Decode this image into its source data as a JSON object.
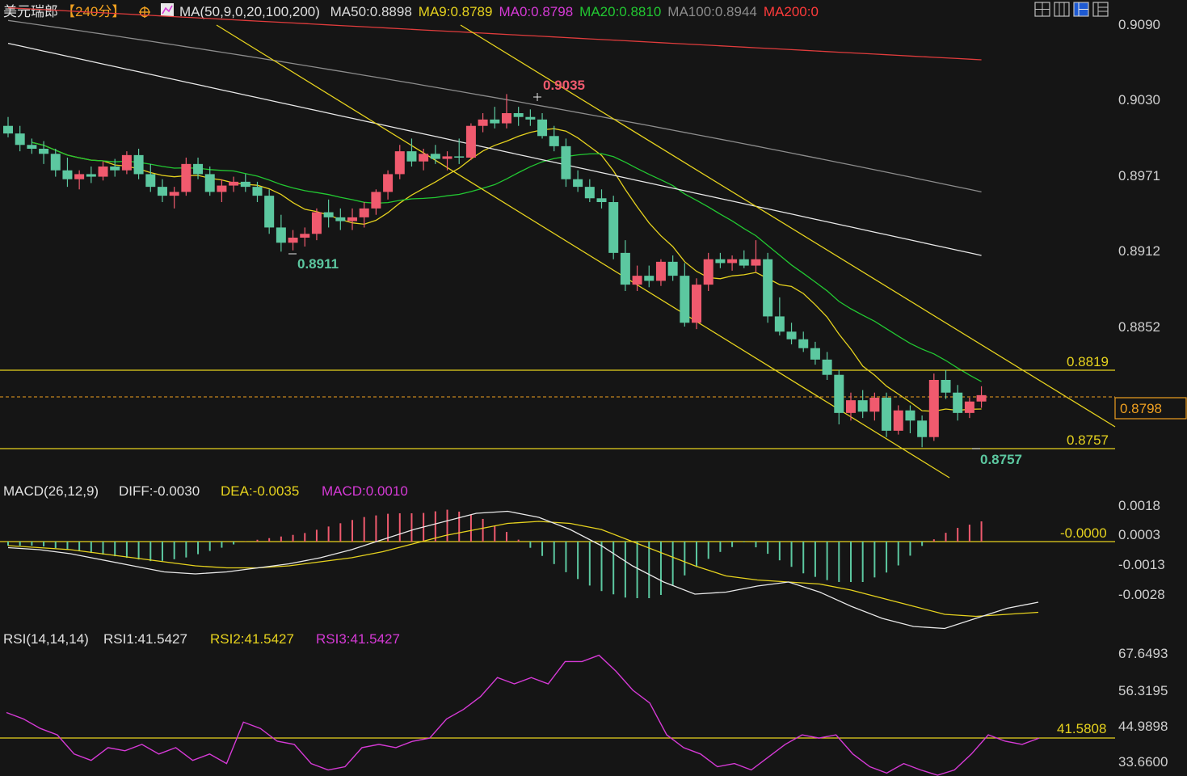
{
  "toolbar": {
    "title": "美元瑞郎",
    "timeframe": "【240分】",
    "ma_label": "MA(50,9,0,20,100,200)",
    "ma_values": [
      {
        "text": "MA50:0.8898",
        "color": "#dcdcdc"
      },
      {
        "text": "MA9:0.8789",
        "color": "#e6d21e"
      },
      {
        "text": "MA0:0.8798",
        "color": "#d63ad6"
      },
      {
        "text": "MA20:0.8810",
        "color": "#22c832"
      },
      {
        "text": "MA100:0.8944",
        "color": "#8c8c8c"
      },
      {
        "text": "MA200:0",
        "color": "#ff3b3b"
      }
    ],
    "window_icons": [
      "layout-1-icon",
      "layout-2-icon",
      "layout-3-icon",
      "layout-4-icon"
    ]
  },
  "colors": {
    "up": "#f05a6e",
    "down": "#5cc8a0",
    "ma9": "#e6d21e",
    "ma20": "#22c832",
    "ma50": "#e8e8e8",
    "ma100": "#8c8c8c",
    "ma200": "#e03c3c",
    "channel": "#e6d21e",
    "level": "#e6d21e",
    "rsi": "#d63ad6",
    "diff": "#e8e8e8",
    "dea": "#e6d21e"
  },
  "main_axis": {
    "ticks": [
      "0.9090",
      "0.9030",
      "0.8971",
      "0.8912",
      "0.8852"
    ],
    "tick_values": [
      0.909,
      0.903,
      0.8971,
      0.8912,
      0.8852
    ],
    "current_price": "0.8798"
  },
  "levels": [
    {
      "label": "0.8819",
      "value": 0.8819
    },
    {
      "label": "0.8757",
      "value": 0.8757
    }
  ],
  "annotations": {
    "high": "0.9035",
    "low1": "0.8911",
    "low2": "0.8757"
  },
  "macd": {
    "header": {
      "name": "MACD(26,12,9)",
      "diff": "DIFF:-0.0030",
      "dea": "DEA:-0.0035",
      "macd": "MACD:0.0010"
    },
    "ticks": [
      "0.0018",
      "0.0003",
      "-0.0013",
      "-0.0028"
    ],
    "zero_label": "-0.0000"
  },
  "rsi": {
    "header": {
      "name": "RSI(14,14,14)",
      "rsi1": "RSI1:41.5427",
      "rsi2": "RSI2:41.5427",
      "rsi3": "RSI3:41.5427"
    },
    "ticks": [
      "67.6493",
      "56.3195",
      "44.9898",
      "33.6600"
    ],
    "level_label": "41.5808"
  },
  "chart_data": {
    "type": "candlestick",
    "symbol": "美元瑞郎",
    "timeframe": "240分",
    "candles": [
      [
        0.901,
        0.9017,
        0.9001,
        0.9004
      ],
      [
        0.9004,
        0.901,
        0.899,
        0.8995
      ],
      [
        0.8995,
        0.9,
        0.8988,
        0.8992
      ],
      [
        0.8992,
        0.8998,
        0.898,
        0.8988
      ],
      [
        0.8988,
        0.8992,
        0.897,
        0.8975
      ],
      [
        0.8975,
        0.8985,
        0.8962,
        0.8968
      ],
      [
        0.8968,
        0.8975,
        0.896,
        0.8972
      ],
      [
        0.8972,
        0.8978,
        0.8965,
        0.897
      ],
      [
        0.897,
        0.8982,
        0.8967,
        0.8978
      ],
      [
        0.8978,
        0.8984,
        0.897,
        0.8975
      ],
      [
        0.8975,
        0.899,
        0.8972,
        0.8987
      ],
      [
        0.8987,
        0.8992,
        0.8968,
        0.8972
      ],
      [
        0.8972,
        0.898,
        0.8958,
        0.8962
      ],
      [
        0.8962,
        0.8968,
        0.895,
        0.8955
      ],
      [
        0.8955,
        0.8962,
        0.8945,
        0.8958
      ],
      [
        0.8958,
        0.8985,
        0.8955,
        0.898
      ],
      [
        0.898,
        0.8985,
        0.8968,
        0.8972
      ],
      [
        0.8972,
        0.8978,
        0.8955,
        0.8958
      ],
      [
        0.8958,
        0.8968,
        0.895,
        0.8963
      ],
      [
        0.8963,
        0.897,
        0.8958,
        0.8966
      ],
      [
        0.8966,
        0.8972,
        0.8958,
        0.8962
      ],
      [
        0.8962,
        0.8966,
        0.895,
        0.8955
      ],
      [
        0.8955,
        0.896,
        0.8925,
        0.893
      ],
      [
        0.893,
        0.894,
        0.8911,
        0.8918
      ],
      [
        0.8918,
        0.8928,
        0.8912,
        0.8922
      ],
      [
        0.8922,
        0.893,
        0.8915,
        0.8925
      ],
      [
        0.8925,
        0.8945,
        0.892,
        0.8942
      ],
      [
        0.8942,
        0.8952,
        0.893,
        0.8938
      ],
      [
        0.8938,
        0.8945,
        0.8928,
        0.8935
      ],
      [
        0.8935,
        0.8945,
        0.8928,
        0.8938
      ],
      [
        0.8938,
        0.895,
        0.893,
        0.8945
      ],
      [
        0.8945,
        0.896,
        0.894,
        0.8958
      ],
      [
        0.8958,
        0.8975,
        0.8952,
        0.8972
      ],
      [
        0.8972,
        0.8995,
        0.8968,
        0.899
      ],
      [
        0.899,
        0.9,
        0.8978,
        0.8982
      ],
      [
        0.8982,
        0.8992,
        0.8975,
        0.8988
      ],
      [
        0.8988,
        0.8995,
        0.898,
        0.8984
      ],
      [
        0.8984,
        0.899,
        0.8975,
        0.8986
      ],
      [
        0.8986,
        0.9,
        0.898,
        0.8985
      ],
      [
        0.8985,
        0.9012,
        0.8983,
        0.901
      ],
      [
        0.901,
        0.902,
        0.9005,
        0.9015
      ],
      [
        0.9015,
        0.9025,
        0.9008,
        0.9012
      ],
      [
        0.9012,
        0.9035,
        0.9008,
        0.902
      ],
      [
        0.902,
        0.9025,
        0.901,
        0.9017
      ],
      [
        0.9017,
        0.9023,
        0.901,
        0.9015
      ],
      [
        0.9015,
        0.902,
        0.9,
        0.9002
      ],
      [
        0.9002,
        0.901,
        0.899,
        0.8994
      ],
      [
        0.8994,
        0.9,
        0.8962,
        0.8968
      ],
      [
        0.8968,
        0.8975,
        0.8958,
        0.8962
      ],
      [
        0.8962,
        0.8968,
        0.895,
        0.8953
      ],
      [
        0.8953,
        0.896,
        0.8945,
        0.895
      ],
      [
        0.895,
        0.8955,
        0.8905,
        0.891
      ],
      [
        0.891,
        0.892,
        0.888,
        0.8885
      ],
      [
        0.8885,
        0.89,
        0.888,
        0.8892
      ],
      [
        0.8892,
        0.89,
        0.8883,
        0.8888
      ],
      [
        0.8888,
        0.8905,
        0.8884,
        0.8903
      ],
      [
        0.8903,
        0.8908,
        0.8888,
        0.8892
      ],
      [
        0.8892,
        0.8902,
        0.8852,
        0.8855
      ],
      [
        0.8855,
        0.889,
        0.885,
        0.8885
      ],
      [
        0.8885,
        0.891,
        0.888,
        0.8905
      ],
      [
        0.8905,
        0.891,
        0.8898,
        0.8902
      ],
      [
        0.8902,
        0.8908,
        0.8896,
        0.8905
      ],
      [
        0.8905,
        0.8912,
        0.8898,
        0.89
      ],
      [
        0.89,
        0.892,
        0.8895,
        0.8905
      ],
      [
        0.8905,
        0.891,
        0.8855,
        0.886
      ],
      [
        0.886,
        0.8875,
        0.8845,
        0.8848
      ],
      [
        0.8848,
        0.8855,
        0.8838,
        0.8842
      ],
      [
        0.8842,
        0.8848,
        0.8832,
        0.8835
      ],
      [
        0.8835,
        0.884,
        0.8822,
        0.8826
      ],
      [
        0.8826,
        0.8832,
        0.881,
        0.8814
      ],
      [
        0.8814,
        0.8818,
        0.8775,
        0.8784
      ],
      [
        0.8784,
        0.88,
        0.8778,
        0.8794
      ],
      [
        0.8794,
        0.8802,
        0.878,
        0.8785
      ],
      [
        0.8785,
        0.88,
        0.8778,
        0.8796
      ],
      [
        0.8796,
        0.88,
        0.8765,
        0.877
      ],
      [
        0.877,
        0.879,
        0.8767,
        0.8786
      ],
      [
        0.8786,
        0.879,
        0.8768,
        0.8778
      ],
      [
        0.8778,
        0.8782,
        0.8757,
        0.8765
      ],
      [
        0.8765,
        0.8815,
        0.8762,
        0.881
      ],
      [
        0.881,
        0.8818,
        0.8795,
        0.88
      ],
      [
        0.88,
        0.8806,
        0.8778,
        0.8784
      ],
      [
        0.8784,
        0.8796,
        0.878,
        0.8793
      ],
      [
        0.8793,
        0.8805,
        0.8788,
        0.8798
      ]
    ],
    "moving_averages": [
      {
        "name": "MA50",
        "last": 0.8898
      },
      {
        "name": "MA9",
        "last": 0.8789
      },
      {
        "name": "MA0",
        "last": 0.8798
      },
      {
        "name": "MA20",
        "last": 0.881
      },
      {
        "name": "MA100",
        "last": 0.8944
      },
      {
        "name": "MA200",
        "last": 0
      }
    ],
    "horizontal_levels": [
      0.8819,
      0.8757
    ],
    "current_price": 0.8798,
    "y_ticks": [
      0.909,
      0.903,
      0.8971,
      0.8912,
      0.8852
    ],
    "annotations": [
      {
        "label": "0.9035",
        "price": 0.9035
      },
      {
        "label": "0.8911",
        "price": 0.8911
      },
      {
        "label": "0.8757",
        "price": 0.8757
      }
    ],
    "macd": {
      "diff": -0.003,
      "dea": -0.0035,
      "macd": 0.001,
      "diff_series": [
        -0.0003,
        -0.0004,
        -0.0006,
        -0.0009,
        -0.0012,
        -0.0015,
        -0.0016,
        -0.0015,
        -0.0013,
        -0.0011,
        -0.0008,
        -0.0004,
        0.0001,
        0.0006,
        0.001,
        0.0014,
        0.0015,
        0.0012,
        0.0006,
        -0.0002,
        -0.0012,
        -0.002,
        -0.0026,
        -0.0025,
        -0.0022,
        -0.002,
        -0.0025,
        -0.0032,
        -0.0038,
        -0.0042,
        -0.0043,
        -0.0038,
        -0.0033,
        -0.003
      ],
      "dea_series": [
        -0.0002,
        -0.0003,
        -0.0004,
        -0.0006,
        -0.0008,
        -0.001,
        -0.0012,
        -0.0013,
        -0.0013,
        -0.0012,
        -0.001,
        -0.0008,
        -0.0005,
        -0.0001,
        0.0003,
        0.0006,
        0.0009,
        0.001,
        0.0009,
        0.0006,
        0.0,
        -0.0006,
        -0.0012,
        -0.0017,
        -0.0019,
        -0.002,
        -0.0021,
        -0.0024,
        -0.0028,
        -0.0032,
        -0.0036,
        -0.0037,
        -0.0036,
        -0.0035
      ],
      "y_ticks": [
        0.0018,
        0.0003,
        -0.0013,
        -0.0028
      ]
    },
    "rsi": {
      "rsi1": 41.5427,
      "rsi2": 41.5427,
      "rsi3": 41.5427,
      "series": [
        49,
        47,
        44,
        42,
        36,
        34,
        38,
        37,
        39,
        36,
        38,
        34,
        36,
        33,
        46,
        44,
        40,
        39,
        33,
        31,
        32,
        38,
        39,
        38,
        40,
        41,
        47,
        50,
        54,
        60,
        58,
        60,
        58,
        65,
        65,
        67,
        62,
        56,
        52,
        42,
        38,
        36,
        32,
        33,
        31,
        35,
        39,
        42,
        41,
        42,
        36,
        32,
        30,
        33,
        31,
        29,
        31,
        36,
        42,
        40,
        39,
        41
      ],
      "level": 41.5808,
      "y_ticks": [
        67.6493,
        56.3195,
        44.9898,
        33.66
      ]
    }
  }
}
